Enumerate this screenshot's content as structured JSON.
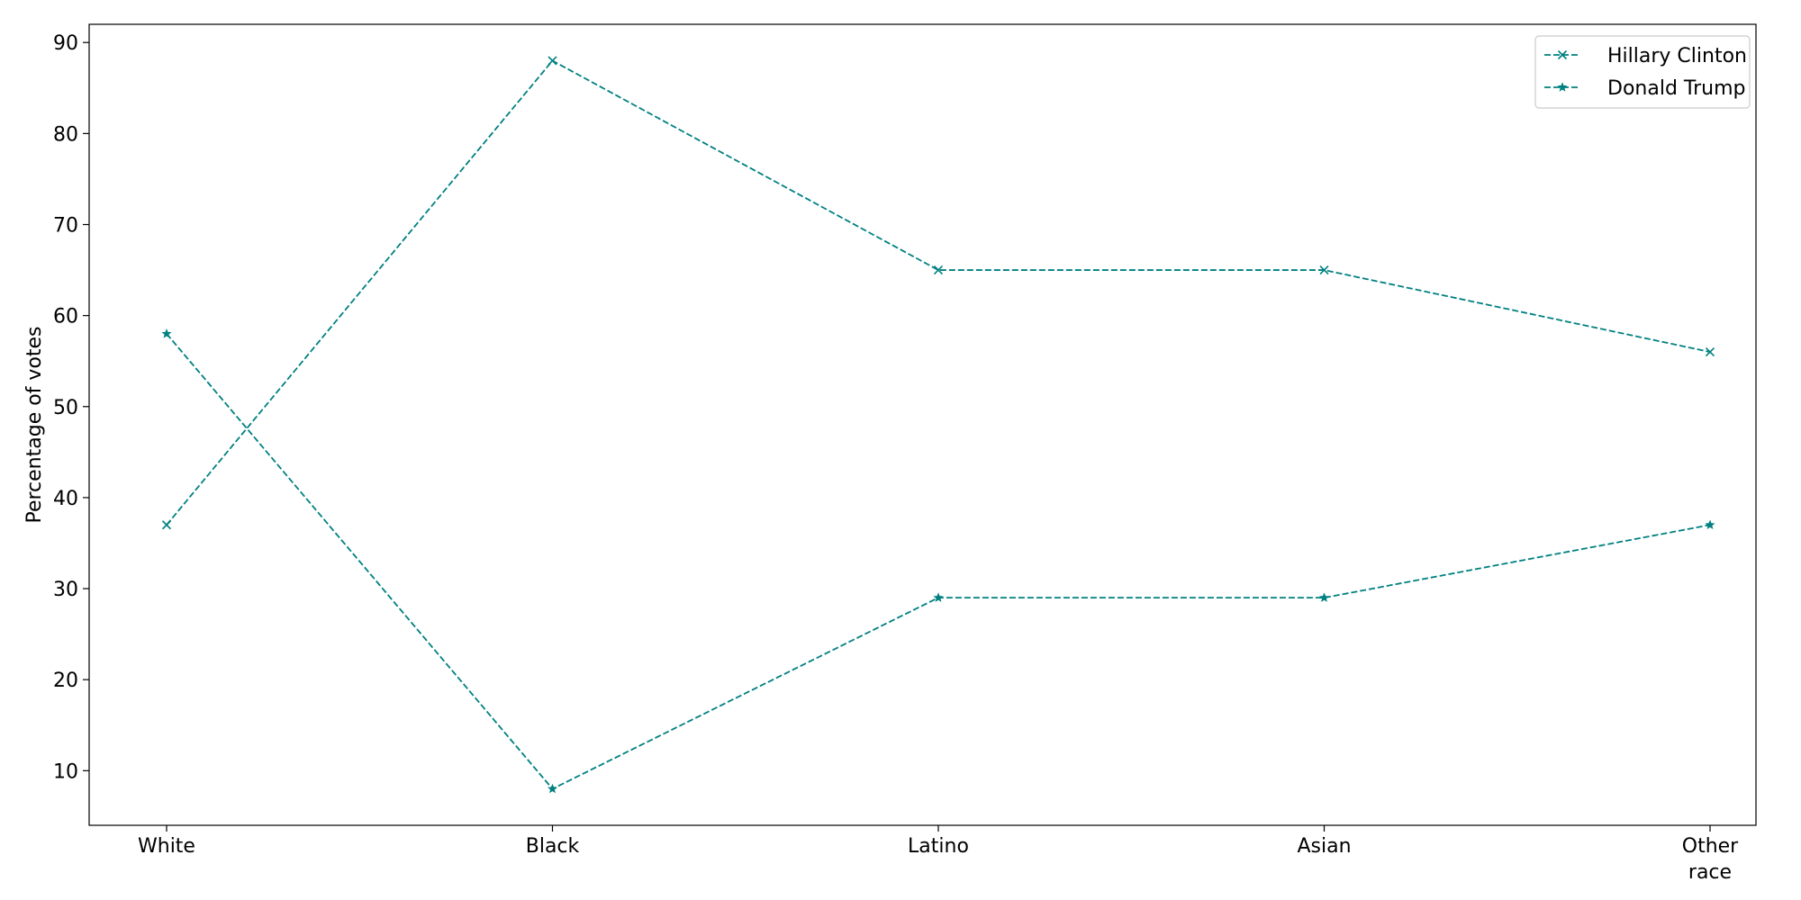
{
  "chart_data": {
    "type": "line",
    "title": "",
    "xlabel": "",
    "ylabel": "Percentage of votes",
    "categories": [
      "White",
      "Black",
      "Latino",
      "Asian",
      "Other\nrace"
    ],
    "ylim": [
      4,
      92
    ],
    "yticks": [
      10,
      20,
      30,
      40,
      50,
      60,
      70,
      80,
      90
    ],
    "grid": false,
    "legend_position": "top-right",
    "line_style": "dashed",
    "series": [
      {
        "name": "Hillary Clinton",
        "values": [
          37,
          88,
          65,
          65,
          56
        ],
        "color": "#008080",
        "marker": "x"
      },
      {
        "name": "Donald Trump",
        "values": [
          58,
          8,
          29,
          29,
          37
        ],
        "color": "#008080",
        "marker": "star"
      }
    ]
  }
}
